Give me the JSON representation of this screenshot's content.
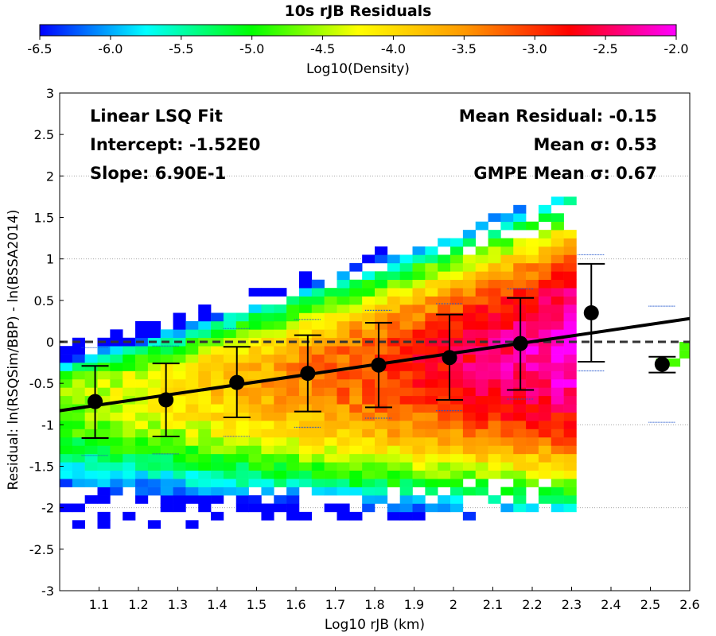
{
  "colors": {
    "fit_line": "#000000",
    "zero_line": "#333333",
    "gridline": "#9a9a9a",
    "colormap": [
      "#0000ff",
      "#00ffff",
      "#00ff00",
      "#ffff00",
      "#ff9900",
      "#ff0000",
      "#ff00ff"
    ]
  },
  "chart_data": {
    "type": "heatmap",
    "title": "10s rJB Residuals",
    "xlabel": "Log10 rJB (km)",
    "ylabel": "Residual: ln(RSQSim/BBP) - ln(BSSA2014)",
    "xlim": [
      1.0,
      2.6
    ],
    "ylim": [
      -3,
      3
    ],
    "x_ticks": [
      "1.1",
      "1.2",
      "1.3",
      "1.4",
      "1.5",
      "1.6",
      "1.7",
      "1.8",
      "1.9",
      "2",
      "2.1",
      "2.2",
      "2.3",
      "2.4",
      "2.5",
      "2.6"
    ],
    "y_ticks": [
      "-3",
      "-2.5",
      "-2",
      "-1.5",
      "-1",
      "-0.5",
      "0",
      "0.5",
      "1",
      "1.5",
      "2",
      "2.5",
      "3"
    ],
    "grid": "dotted horizontal lines at y = -2, -1, 1, 2",
    "colorbar": {
      "label": "Log10(Density)",
      "range": [
        -6.5,
        -2.0
      ],
      "ticks": [
        "-6.5",
        "-6.0",
        "-5.5",
        "-5.0",
        "-4.5",
        "-4.0",
        "-3.5",
        "-3.0",
        "-2.5",
        "-2.0"
      ],
      "colormap": "blue-cyan-green-yellow-orange-red-magenta",
      "position": "top"
    },
    "density_bins": {
      "x_range": [
        1.0,
        2.3
      ],
      "y_range": [
        -2.25,
        1.85
      ],
      "note": "2D histogram of residual density, peaking near x 2.25, y 0"
    },
    "sparse_tail_bins": [
      {
        "x": 2.53,
        "y": -0.25
      },
      {
        "x": 2.56,
        "y": -0.25
      },
      {
        "x": 2.59,
        "y": -0.15
      },
      {
        "x": 2.59,
        "y": -0.05
      }
    ],
    "fit_line": {
      "x": [
        1.0,
        2.6
      ],
      "y": [
        -0.83,
        0.28
      ]
    },
    "zero_line": 0,
    "binned_means": [
      {
        "x": 1.09,
        "mean": -0.72,
        "lower": -1.16,
        "upper": -0.29,
        "gmpe_lower": -1.37,
        "gmpe_upper": -0.07
      },
      {
        "x": 1.27,
        "mean": -0.7,
        "lower": -1.14,
        "upper": -0.26,
        "gmpe_lower": -1.35,
        "gmpe_upper": -0.05
      },
      {
        "x": 1.45,
        "mean": -0.49,
        "lower": -0.91,
        "upper": -0.06,
        "gmpe_lower": -1.14,
        "gmpe_upper": 0.16
      },
      {
        "x": 1.63,
        "mean": -0.38,
        "lower": -0.84,
        "upper": 0.08,
        "gmpe_lower": -1.03,
        "gmpe_upper": 0.27
      },
      {
        "x": 1.81,
        "mean": -0.28,
        "lower": -0.79,
        "upper": 0.23,
        "gmpe_lower": -0.92,
        "gmpe_upper": 0.38
      },
      {
        "x": 1.99,
        "mean": -0.19,
        "lower": -0.7,
        "upper": 0.33,
        "gmpe_lower": -0.83,
        "gmpe_upper": 0.46
      },
      {
        "x": 2.17,
        "mean": -0.02,
        "lower": -0.58,
        "upper": 0.53,
        "gmpe_lower": -0.69,
        "gmpe_upper": 0.64
      },
      {
        "x": 2.35,
        "mean": 0.35,
        "lower": -0.24,
        "upper": 0.94,
        "gmpe_lower": -0.35,
        "gmpe_upper": 1.05
      },
      {
        "x": 2.53,
        "mean": -0.27,
        "lower": -0.37,
        "upper": -0.18,
        "gmpe_lower": -0.97,
        "gmpe_upper": 0.43
      }
    ],
    "annotations_left": [
      "Linear LSQ Fit",
      "Intercept: -1.52E0",
      "Slope: 6.90E-1"
    ],
    "annotations_right": [
      "Mean Residual: -0.15",
      "Mean σ: 0.53",
      "GMPE Mean σ: 0.67"
    ]
  }
}
